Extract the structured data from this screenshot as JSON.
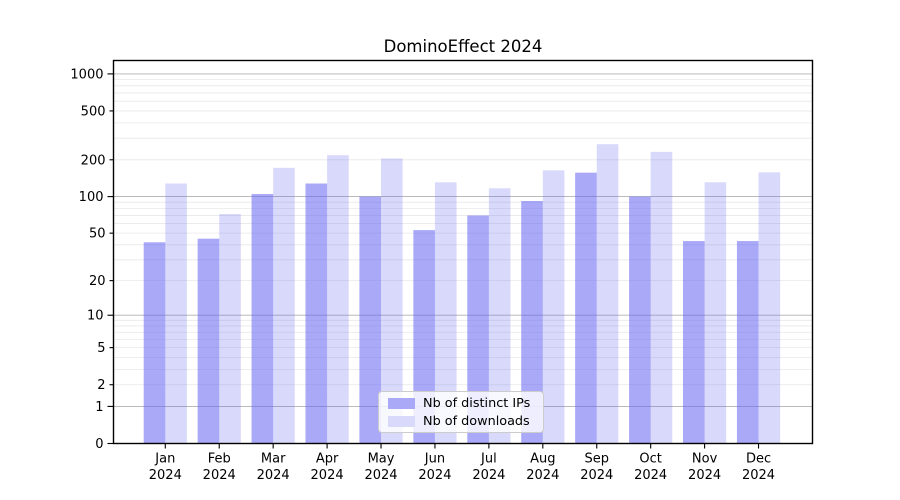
{
  "title": "DominoEffect 2024",
  "chart_data": {
    "type": "bar",
    "title": "DominoEffect 2024",
    "categories": [
      "Jan 2024",
      "Feb 2024",
      "Mar 2024",
      "Apr 2024",
      "May 2024",
      "Jun 2024",
      "Jul 2024",
      "Aug 2024",
      "Sep 2024",
      "Oct 2024",
      "Nov 2024",
      "Dec 2024"
    ],
    "month_labels": [
      "Jan",
      "Feb",
      "Mar",
      "Apr",
      "May",
      "Jun",
      "Jul",
      "Aug",
      "Sep",
      "Oct",
      "Nov",
      "Dec"
    ],
    "year_label": "2024",
    "series": [
      {
        "key": "distinct-ips",
        "name": "Nb of distinct IPs",
        "alpha": 0.55,
        "values": [
          42,
          45,
          105,
          128,
          100,
          53,
          70,
          92,
          157,
          100,
          43,
          43
        ]
      },
      {
        "key": "downloads",
        "name": "Nb of downloads",
        "alpha": 0.24,
        "values": [
          128,
          72,
          172,
          218,
          205,
          131,
          117,
          164,
          268,
          232,
          131,
          158
        ]
      }
    ],
    "xlabel": "",
    "ylabel": "",
    "yscale": "log1p",
    "ylim": [
      0,
      1285
    ],
    "y_tick_values": [
      0,
      1,
      2,
      5,
      10,
      20,
      50,
      100,
      200,
      500,
      1000
    ],
    "y_major_tick_values": [
      0,
      1,
      10,
      100,
      1000
    ],
    "grid": "both",
    "legend_position": "lower center",
    "colors": {
      "bar_base": "#6262f2",
      "bar_dark_rendered": "#a9a9f5",
      "bar_light_rendered": "#d9d9f8",
      "grid_major": "#b0b0b0",
      "grid_minor": "#e8e8e8",
      "spine": "#000000",
      "text": "#000000",
      "legend_border": "#cccccc"
    }
  }
}
